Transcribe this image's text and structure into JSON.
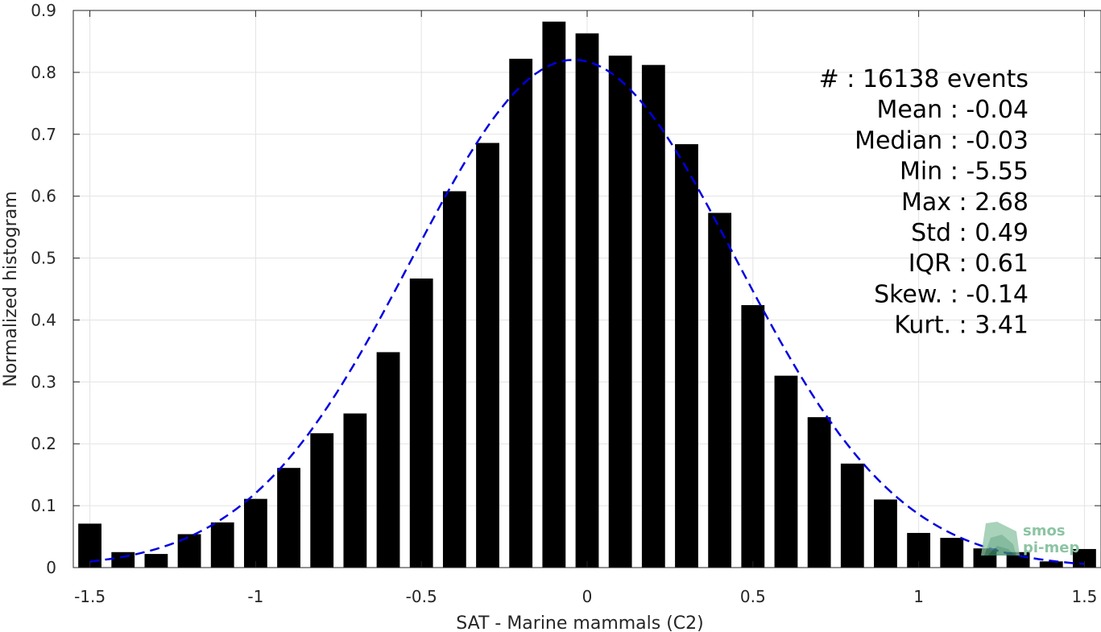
{
  "chart_data": {
    "type": "bar",
    "xlabel": "SAT - Marine mammals (C2)",
    "ylabel": "Normalized histogram",
    "xlim": [
      -1.55,
      1.55
    ],
    "ylim": [
      0,
      0.9
    ],
    "xticks": [
      -1.5,
      -1,
      -0.5,
      0,
      0.5,
      1,
      1.5
    ],
    "xtick_labels": [
      "-1.5",
      "-1",
      "-0.5",
      "0",
      "0.5",
      "1",
      "1.5"
    ],
    "yticks": [
      0,
      0.1,
      0.2,
      0.3,
      0.4,
      0.5,
      0.6,
      0.7,
      0.8,
      0.9
    ],
    "ytick_labels": [
      "0",
      "0.1",
      "0.2",
      "0.3",
      "0.4",
      "0.5",
      "0.6",
      "0.7",
      "0.8",
      "0.9"
    ],
    "grid": true,
    "bar_width": 0.07,
    "x": [
      -1.5,
      -1.4,
      -1.3,
      -1.2,
      -1.1,
      -1.0,
      -0.9,
      -0.8,
      -0.7,
      -0.6,
      -0.5,
      -0.4,
      -0.3,
      -0.2,
      -0.1,
      0.0,
      0.1,
      0.2,
      0.3,
      0.4,
      0.5,
      0.6,
      0.7,
      0.8,
      0.9,
      1.0,
      1.1,
      1.2,
      1.3,
      1.4,
      1.5
    ],
    "values": [
      0.071,
      0.025,
      0.022,
      0.054,
      0.073,
      0.111,
      0.161,
      0.217,
      0.249,
      0.348,
      0.467,
      0.608,
      0.686,
      0.822,
      0.882,
      0.863,
      0.827,
      0.812,
      0.684,
      0.573,
      0.424,
      0.31,
      0.243,
      0.168,
      0.11,
      0.056,
      0.048,
      0.031,
      0.025,
      0.01,
      0.03
    ],
    "bar_color": "#000000",
    "fit_curve": {
      "style": "dashed",
      "color": "#0000e0",
      "mean": -0.04,
      "std": 0.49,
      "x_range": [
        -1.5,
        1.5
      ]
    },
    "stats": [
      {
        "label": "#  ",
        "value": ": 16138 events"
      },
      {
        "label": "Mean ",
        "value": ": -0.04"
      },
      {
        "label": "Median ",
        "value": ": -0.03"
      },
      {
        "label": "Min ",
        "value": ": -5.55"
      },
      {
        "label": "Max ",
        "value": ": 2.68"
      },
      {
        "label": "Std ",
        "value": ": 0.49"
      },
      {
        "label": "IQR ",
        "value": ": 0.61"
      },
      {
        "label": "Skew. ",
        "value": ": -0.14"
      },
      {
        "label": "Kurt. ",
        "value": ": 3.41"
      }
    ]
  },
  "logo": {
    "line1": "smos",
    "line2": "pi-mep",
    "color": "#8cc4a3"
  }
}
